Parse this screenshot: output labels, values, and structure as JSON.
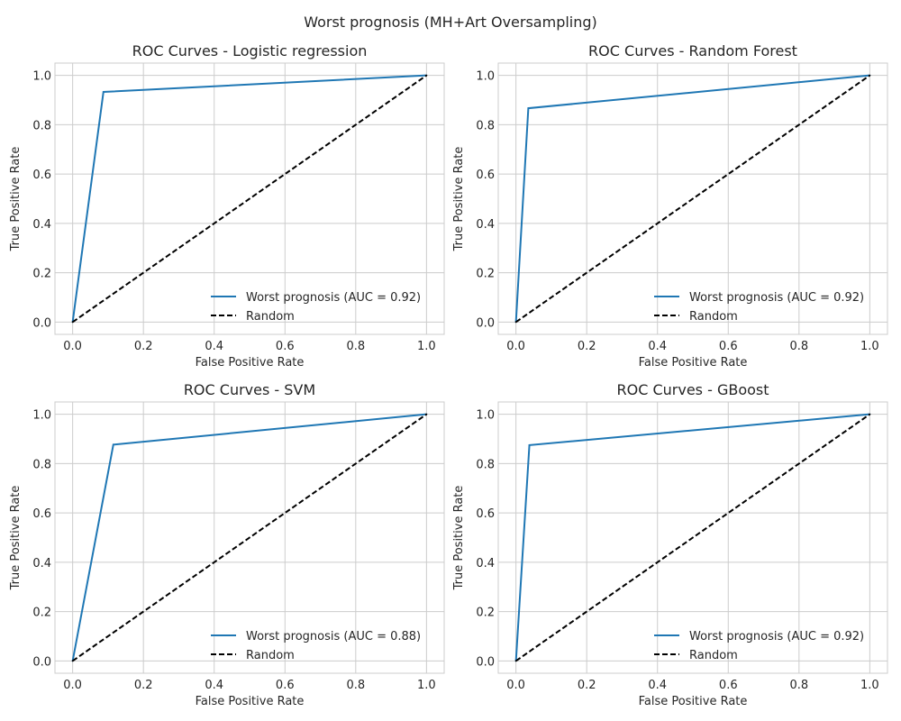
{
  "figure_title": "Worst prognosis (MH+Art Oversampling)",
  "colors": {
    "roc": "#1f77b4",
    "random": "#000000",
    "grid": "#cccccc"
  },
  "chart_data": [
    {
      "type": "line",
      "title": "ROC Curves - Logistic regression",
      "xlabel": "False Positive Rate",
      "ylabel": "True Positive Rate",
      "xlim": [
        -0.05,
        1.05
      ],
      "ylim": [
        -0.05,
        1.05
      ],
      "xticks": [
        "0.0",
        "0.2",
        "0.4",
        "0.6",
        "0.8",
        "1.0"
      ],
      "yticks": [
        "0.0",
        "0.2",
        "0.4",
        "0.6",
        "0.8",
        "1.0"
      ],
      "grid": true,
      "legend_position": "lower-right",
      "series": [
        {
          "name": "Worst prognosis (AUC = 0.92)",
          "x": [
            0.0,
            0.087,
            1.0
          ],
          "y": [
            0.0,
            0.933,
            1.0
          ],
          "color": "#1f77b4",
          "style": "solid"
        },
        {
          "name": "Random",
          "x": [
            0.0,
            1.0
          ],
          "y": [
            0.0,
            1.0
          ],
          "color": "#000000",
          "style": "dashed"
        }
      ]
    },
    {
      "type": "line",
      "title": "ROC Curves - Random Forest",
      "xlabel": "False Positive Rate",
      "ylabel": "True Positive Rate",
      "xlim": [
        -0.05,
        1.05
      ],
      "ylim": [
        -0.05,
        1.05
      ],
      "xticks": [
        "0.0",
        "0.2",
        "0.4",
        "0.6",
        "0.8",
        "1.0"
      ],
      "yticks": [
        "0.0",
        "0.2",
        "0.4",
        "0.6",
        "0.8",
        "1.0"
      ],
      "grid": true,
      "legend_position": "lower-right",
      "series": [
        {
          "name": "Worst prognosis (AUC = 0.92)",
          "x": [
            0.0,
            0.035,
            1.0
          ],
          "y": [
            0.0,
            0.867,
            1.0
          ],
          "color": "#1f77b4",
          "style": "solid"
        },
        {
          "name": "Random",
          "x": [
            0.0,
            1.0
          ],
          "y": [
            0.0,
            1.0
          ],
          "color": "#000000",
          "style": "dashed"
        }
      ]
    },
    {
      "type": "line",
      "title": "ROC Curves - SVM",
      "xlabel": "False Positive Rate",
      "ylabel": "True Positive Rate",
      "xlim": [
        -0.05,
        1.05
      ],
      "ylim": [
        -0.05,
        1.05
      ],
      "xticks": [
        "0.0",
        "0.2",
        "0.4",
        "0.6",
        "0.8",
        "1.0"
      ],
      "yticks": [
        "0.0",
        "0.2",
        "0.4",
        "0.6",
        "0.8",
        "1.0"
      ],
      "grid": true,
      "legend_position": "lower-right",
      "series": [
        {
          "name": "Worst prognosis (AUC = 0.88)",
          "x": [
            0.0,
            0.115,
            1.0
          ],
          "y": [
            0.0,
            0.877,
            1.0
          ],
          "color": "#1f77b4",
          "style": "solid"
        },
        {
          "name": "Random",
          "x": [
            0.0,
            1.0
          ],
          "y": [
            0.0,
            1.0
          ],
          "color": "#000000",
          "style": "dashed"
        }
      ]
    },
    {
      "type": "line",
      "title": "ROC Curves - GBoost",
      "xlabel": "False Positive Rate",
      "ylabel": "True Positive Rate",
      "xlim": [
        -0.05,
        1.05
      ],
      "ylim": [
        -0.05,
        1.05
      ],
      "xticks": [
        "0.0",
        "0.2",
        "0.4",
        "0.6",
        "0.8",
        "1.0"
      ],
      "yticks": [
        "0.0",
        "0.2",
        "0.4",
        "0.6",
        "0.8",
        "1.0"
      ],
      "grid": true,
      "legend_position": "lower-right",
      "series": [
        {
          "name": "Worst prognosis (AUC = 0.92)",
          "x": [
            0.0,
            0.038,
            1.0
          ],
          "y": [
            0.0,
            0.875,
            1.0
          ],
          "color": "#1f77b4",
          "style": "solid"
        },
        {
          "name": "Random",
          "x": [
            0.0,
            1.0
          ],
          "y": [
            0.0,
            1.0
          ],
          "color": "#000000",
          "style": "dashed"
        }
      ]
    }
  ]
}
